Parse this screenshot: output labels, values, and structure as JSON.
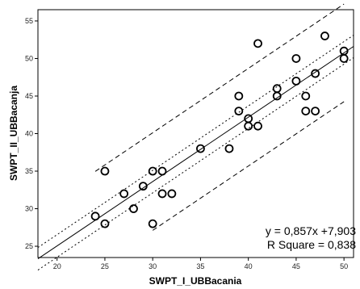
{
  "chart_data": {
    "type": "scatter",
    "xlabel": "SWPT_I_UBBacania",
    "ylabel": "SWPT_II_UBBacanja",
    "xlim": [
      18,
      51
    ],
    "ylim": [
      23.5,
      56.5
    ],
    "x_ticks": [
      "20",
      "25",
      "30",
      "35",
      "40",
      "45",
      "50"
    ],
    "y_ticks": [
      "25",
      "30",
      "35",
      "40",
      "45",
      "50",
      "55"
    ],
    "points": [
      {
        "x": 24,
        "y": 29
      },
      {
        "x": 25,
        "y": 35
      },
      {
        "x": 25,
        "y": 28
      },
      {
        "x": 27,
        "y": 32
      },
      {
        "x": 28,
        "y": 30
      },
      {
        "x": 29,
        "y": 33
      },
      {
        "x": 30,
        "y": 35
      },
      {
        "x": 30,
        "y": 28
      },
      {
        "x": 31,
        "y": 35
      },
      {
        "x": 31,
        "y": 32
      },
      {
        "x": 32,
        "y": 32
      },
      {
        "x": 35,
        "y": 38
      },
      {
        "x": 38,
        "y": 38
      },
      {
        "x": 39,
        "y": 45
      },
      {
        "x": 39,
        "y": 43
      },
      {
        "x": 40,
        "y": 42
      },
      {
        "x": 40,
        "y": 41
      },
      {
        "x": 41,
        "y": 52
      },
      {
        "x": 41,
        "y": 41
      },
      {
        "x": 43,
        "y": 46
      },
      {
        "x": 43,
        "y": 45
      },
      {
        "x": 45,
        "y": 50
      },
      {
        "x": 45,
        "y": 47
      },
      {
        "x": 46,
        "y": 45
      },
      {
        "x": 46,
        "y": 43
      },
      {
        "x": 47,
        "y": 48
      },
      {
        "x": 47,
        "y": 43
      },
      {
        "x": 48,
        "y": 53
      },
      {
        "x": 50,
        "y": 51
      },
      {
        "x": 50,
        "y": 50
      }
    ],
    "fit": {
      "slope": 0.857,
      "intercept": 7.903
    },
    "ci_mean_offset": 1.5,
    "pi_offset": 6.5,
    "annotations": {
      "equation": "y = 0,857x +7,903",
      "r_square": "R Square = 0,838"
    },
    "grid": false,
    "legend": "none",
    "colors": {
      "points": "#000000",
      "lines": "#000000",
      "frame": "#000000"
    }
  }
}
